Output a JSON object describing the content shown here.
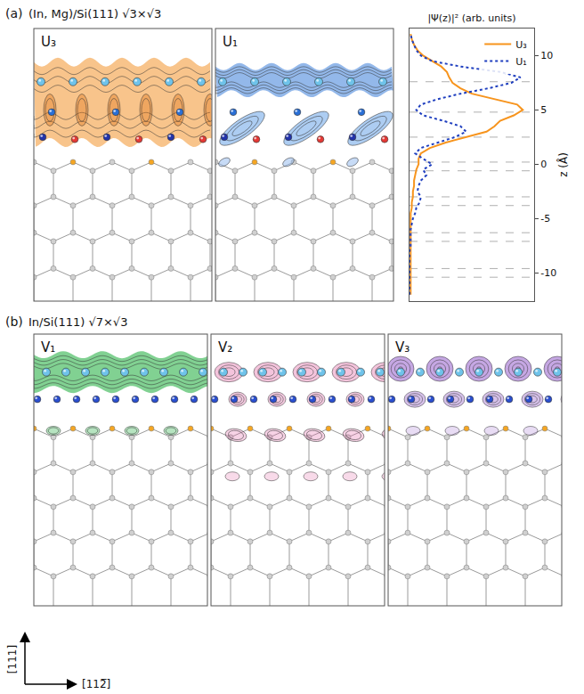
{
  "panel_a": {
    "letter": "(a)",
    "title": "(In, Mg)/Si(111) √3×√3",
    "maps": [
      "U₃",
      "U₁"
    ]
  },
  "panel_b": {
    "letter": "(b)",
    "title": "In/Si(111) √7×√3",
    "maps": [
      "V₁",
      "V₂",
      "V₃"
    ]
  },
  "axes_arrows": {
    "vertical": "[111]",
    "horizontal": "[112̅]"
  },
  "chart_data": {
    "type": "line",
    "x_label": "|Ψ(z)|² (arb. units)",
    "y_label": "z (Å)",
    "xlim": [
      0,
      1.1
    ],
    "ylim": [
      -12.6,
      12.5
    ],
    "yticks": [
      -10,
      -5,
      0,
      5,
      10
    ],
    "tick_labels": "y",
    "grid": false,
    "legend": "upper right",
    "layer_z": [
      7.6,
      4.8,
      2.5,
      0.2,
      -0.6,
      -3.0,
      -3.8,
      -6.3,
      -7.1,
      -9.6,
      -10.4
    ],
    "y": [
      -12,
      -11.5,
      -11,
      -10.5,
      -10,
      -9.5,
      -9,
      -8.5,
      -8,
      -7.5,
      -7,
      -6.5,
      -6,
      -5.5,
      -5,
      -4.5,
      -4,
      -3.5,
      -3,
      -2.5,
      -2,
      -1.5,
      -1,
      -0.5,
      0,
      0.5,
      1,
      1.5,
      2,
      2.5,
      3,
      3.5,
      4,
      4.5,
      5,
      5.5,
      6,
      6.5,
      7,
      7.5,
      8,
      8.5,
      9,
      9.5,
      10,
      10.5,
      11,
      11.5,
      12
    ],
    "series": [
      {
        "name": "U₃",
        "color": "#f7941d",
        "line_style": "solid",
        "values": [
          0.01,
          0.01,
          0.01,
          0.01,
          0.01,
          0.01,
          0.01,
          0.01,
          0.01,
          0.01,
          0.01,
          0.01,
          0.01,
          0.01,
          0.01,
          0.01,
          0.02,
          0.02,
          0.03,
          0.03,
          0.04,
          0.04,
          0.05,
          0.06,
          0.08,
          0.08,
          0.1,
          0.18,
          0.32,
          0.5,
          0.68,
          0.75,
          0.8,
          0.92,
          1.0,
          0.95,
          0.75,
          0.55,
          0.45,
          0.38,
          0.35,
          0.33,
          0.28,
          0.2,
          0.12,
          0.07,
          0.04,
          0.02,
          0.01
        ]
      },
      {
        "name": "U₁",
        "color": "#1f3fbf",
        "line_style": "dotted",
        "values": [
          0.0,
          0.0,
          0.0,
          0.0,
          0.0,
          0.0,
          0.0,
          0.0,
          0.0,
          0.01,
          0.01,
          0.01,
          0.01,
          0.02,
          0.03,
          0.05,
          0.06,
          0.09,
          0.1,
          0.07,
          0.08,
          0.1,
          0.15,
          0.12,
          0.2,
          0.12,
          0.05,
          0.1,
          0.25,
          0.4,
          0.5,
          0.45,
          0.3,
          0.12,
          0.06,
          0.1,
          0.25,
          0.45,
          0.7,
          0.9,
          0.98,
          0.8,
          0.45,
          0.2,
          0.1,
          0.06,
          0.04,
          0.02,
          0.01
        ]
      }
    ]
  }
}
